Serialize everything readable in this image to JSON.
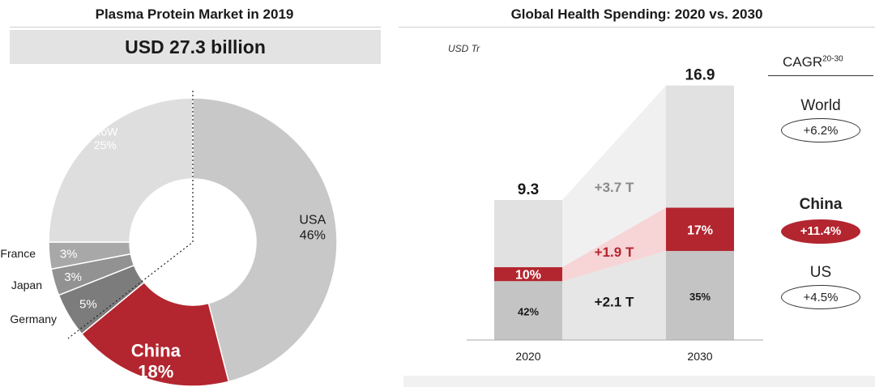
{
  "chart_data": [
    {
      "type": "pie",
      "title": "Plasma Protein Market in 2019",
      "banner": "USD 27.3 billion",
      "slices": [
        {
          "label": "USA",
          "value": 46,
          "value_label": "46%",
          "color": "#c8c8c8"
        },
        {
          "label": "China",
          "value": 18,
          "value_label": "18%",
          "color": "#b3262f"
        },
        {
          "label": "Germany",
          "value": 5,
          "value_label": "5%",
          "color": "#7c7c7c"
        },
        {
          "label": "Japan",
          "value": 3,
          "value_label": "3%",
          "color": "#929292"
        },
        {
          "label": "France",
          "value": 3,
          "value_label": "3%",
          "color": "#a8a8a8"
        },
        {
          "label": "RoW",
          "value": 25,
          "value_label": "25%",
          "color": "#dedede"
        }
      ]
    },
    {
      "type": "bar",
      "title": "Global Health Spending: 2020 vs. 2030",
      "unit": "USD Tr",
      "categories": [
        "2020",
        "2030"
      ],
      "totals": [
        9.3,
        16.9
      ],
      "total_labels": [
        "9.3",
        "16.9"
      ],
      "segments": [
        {
          "name": "US",
          "shares": [
            42,
            35
          ],
          "share_labels": [
            "42%",
            "35%"
          ],
          "color": "#c4c4c4"
        },
        {
          "name": "China",
          "shares": [
            10,
            17
          ],
          "share_labels": [
            "10%",
            "17%"
          ],
          "color": "#b3262f"
        },
        {
          "name": "World",
          "color": "#e1e1e1"
        }
      ],
      "changes": [
        {
          "segment": "World",
          "label": "+3.7 T"
        },
        {
          "segment": "China",
          "label": "+1.9 T"
        },
        {
          "segment": "US",
          "label": "+2.1 T"
        }
      ],
      "cagr": {
        "title": "CAGR",
        "period": "20-30",
        "items": [
          {
            "region": "World",
            "value": "+6.2%",
            "highlight": false
          },
          {
            "region": "China",
            "value": "+11.4%",
            "highlight": true
          },
          {
            "region": "US",
            "value": "+4.5%",
            "highlight": false
          }
        ]
      }
    }
  ]
}
